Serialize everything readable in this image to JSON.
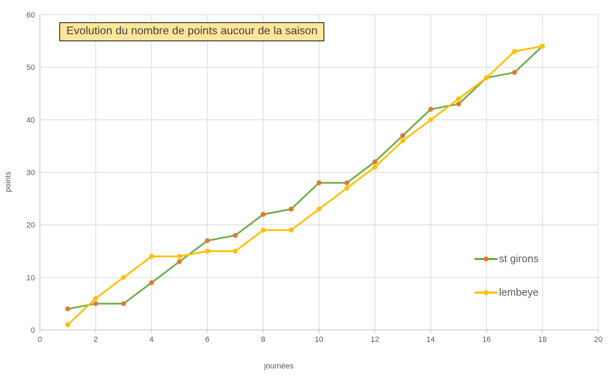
{
  "title": "Evolution du nombre de points aucour de la saison",
  "chart_data": {
    "type": "line",
    "title": "Evolution du nombre de points aucour de la saison",
    "xlabel": "journées",
    "ylabel": "points",
    "xlim": [
      0,
      20
    ],
    "ylim": [
      0,
      60
    ],
    "x_ticks": [
      0,
      2,
      4,
      6,
      8,
      10,
      12,
      14,
      16,
      18,
      20
    ],
    "y_ticks": [
      0,
      10,
      20,
      30,
      40,
      50,
      60
    ],
    "grid": true,
    "legend_position": "right-middle",
    "x": [
      1,
      2,
      3,
      4,
      5,
      6,
      7,
      8,
      9,
      10,
      11,
      12,
      13,
      14,
      15,
      16,
      17,
      18
    ],
    "series": [
      {
        "name": "st girons",
        "values": [
          4,
          5,
          5,
          9,
          13,
          17,
          18,
          22,
          23,
          28,
          28,
          32,
          37,
          42,
          43,
          48,
          49,
          54
        ],
        "line_color": "#70AD47",
        "marker_color": "#E2772F"
      },
      {
        "name": "lembeye",
        "values": [
          1,
          6,
          10,
          14,
          14,
          15,
          15,
          19,
          19,
          23,
          27,
          31,
          36,
          40,
          44,
          48,
          53,
          54
        ],
        "line_color": "#FFC000",
        "marker_color": "#FFC000"
      }
    ]
  },
  "colors": {
    "title_bg": "#FFE699",
    "title_border": "#000000",
    "title_text": "#3f3f3f",
    "grid": "#D9D9D9",
    "axis": "#BFBFBF",
    "tick_text": "#595959",
    "background": "#FFFFFF"
  }
}
